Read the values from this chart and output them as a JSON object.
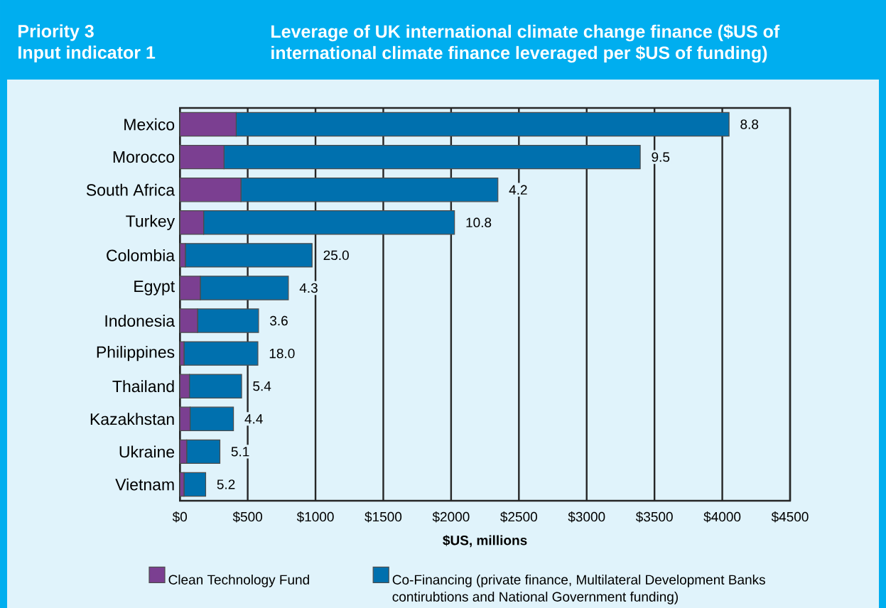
{
  "chart_data": {
    "type": "bar",
    "orientation": "horizontal",
    "stacked": true,
    "title": "Leverage of UK international climate change finance ($US of international climate finance leveraged per $US of funding)",
    "xlabel": "$US, millions",
    "categories": [
      "Mexico",
      "Morocco",
      "South Africa",
      "Turkey",
      "Colombia",
      "Egypt",
      "Indonesia",
      "Philippines",
      "Thailand",
      "Kazakhstan",
      "Ukraine",
      "Vietnam"
    ],
    "series": [
      {
        "name": "Clean Technology Fund",
        "color": "#7b3f91",
        "values": [
          415,
          325,
          450,
          175,
          40,
          150,
          130,
          30,
          70,
          75,
          50,
          30
        ]
      },
      {
        "name": "Co-Financing (private finance, Multilateral Development Banks contirubtions and National Government funding)",
        "color": "#0070ae",
        "values": [
          3635,
          3070,
          1895,
          1850,
          935,
          650,
          450,
          545,
          385,
          320,
          245,
          160
        ]
      }
    ],
    "xlim": [
      0,
      4500
    ],
    "xticks": [
      {
        "value": 0,
        "label": "$0"
      },
      {
        "value": 500,
        "label": "$500"
      },
      {
        "value": 1000,
        "label": "$1000"
      },
      {
        "value": 1500,
        "label": "$1500"
      },
      {
        "value": 2000,
        "label": "$2000"
      },
      {
        "value": 2500,
        "label": "$2500"
      },
      {
        "value": 3000,
        "label": "$3000"
      },
      {
        "value": 3500,
        "label": "$3500"
      },
      {
        "value": 4000,
        "label": "$4000"
      },
      {
        "value": 4500,
        "label": "$4500"
      }
    ],
    "grid": "x",
    "legend": "bottom",
    "annotations": [
      "Priority 3",
      "Input indicator 1",
      {
        "text": "8.8",
        "x": 4050,
        "y": "Mexico"
      },
      {
        "text": "9.5",
        "x": 3395,
        "y": "Morocco"
      },
      {
        "text": "4.2",
        "x": 2345,
        "y": "South Africa"
      },
      {
        "text": "10.8",
        "x": 2025,
        "y": "Turkey"
      },
      {
        "text": "25.0",
        "x": 975,
        "y": "Colombia"
      },
      {
        "text": "4.3",
        "x": 800,
        "y": "Egypt"
      },
      {
        "text": "3.6",
        "x": 580,
        "y": "Indonesia"
      },
      {
        "text": "18.0",
        "x": 575,
        "y": "Philippines"
      },
      {
        "text": "5.4",
        "x": 455,
        "y": "Thailand"
      },
      {
        "text": "4.4",
        "x": 395,
        "y": "Kazakhstan"
      },
      {
        "text": "5.1",
        "x": 295,
        "y": "Ukraine"
      },
      {
        "text": "5.2",
        "x": 190,
        "y": "Vietnam"
      }
    ]
  }
}
